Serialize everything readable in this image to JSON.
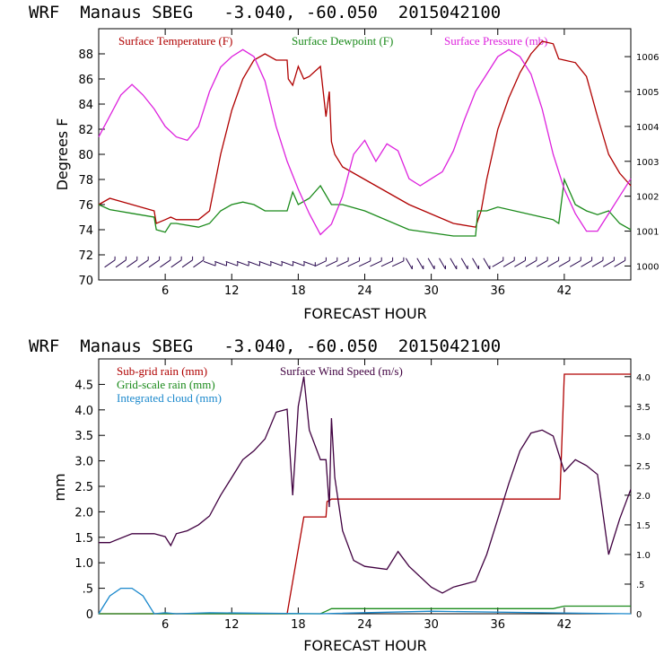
{
  "chart_data": [
    {
      "type": "line",
      "header": "WRF  Manaus SBEG   -3.040, -60.050  2015042100",
      "xlabel": "FORECAST HOUR",
      "ylabel": "Degrees F",
      "xlim": [
        0,
        48
      ],
      "ylim": [
        70,
        90
      ],
      "xticks": [
        6,
        12,
        18,
        24,
        30,
        36,
        42
      ],
      "yticks": [
        70,
        72,
        74,
        76,
        78,
        80,
        82,
        84,
        86,
        88
      ],
      "y2lim": [
        999.6,
        1006.8
      ],
      "y2ticks": [
        1000,
        1001,
        1002,
        1003,
        1004,
        1005,
        1006
      ],
      "legend_position": "top",
      "series": [
        {
          "name": "Surface Temperature (F)",
          "color": "#b00000",
          "axis": "left",
          "x": [
            0,
            1,
            3,
            5,
            5.2,
            6,
            6.5,
            7,
            9,
            10,
            11,
            12,
            13,
            14,
            15,
            16,
            17,
            17.1,
            17.5,
            18,
            18.5,
            19,
            20,
            20.5,
            20.8,
            21,
            21.3,
            22,
            24,
            28,
            32,
            34,
            34.5,
            35,
            36,
            37,
            38,
            39,
            40,
            41,
            41.5,
            42,
            43,
            44,
            45,
            46,
            47,
            48
          ],
          "y": [
            76,
            76.5,
            76,
            75.5,
            74.5,
            74.8,
            75,
            74.8,
            74.8,
            75.5,
            80,
            83.5,
            86,
            87.5,
            88,
            87.5,
            87.5,
            86,
            85.5,
            87,
            86,
            86.2,
            87,
            83,
            85,
            81,
            80,
            79,
            78,
            76,
            74.5,
            74.2,
            75.5,
            78,
            82,
            84.5,
            86.5,
            88,
            89,
            88.8,
            87.6,
            87.5,
            87.3,
            86.2,
            83,
            80,
            78.5,
            77.5
          ]
        },
        {
          "name": "Surface Dewpoint (F)",
          "color": "#1a8a1a",
          "axis": "left",
          "x": [
            0,
            1,
            3,
            5,
            5.2,
            6,
            6.5,
            7,
            9,
            10,
            11,
            12,
            13,
            14,
            15,
            16,
            17,
            17.5,
            18,
            19,
            20,
            21,
            22,
            24,
            28,
            32,
            34,
            34.2,
            35,
            36,
            40,
            41,
            41.5,
            42,
            43,
            44,
            45,
            46,
            47,
            48
          ],
          "y": [
            76,
            75.6,
            75.3,
            75,
            74,
            73.8,
            74.5,
            74.5,
            74.2,
            74.5,
            75.5,
            76,
            76.2,
            76,
            75.5,
            75.5,
            75.5,
            77,
            76,
            76.5,
            77.5,
            76,
            76,
            75.5,
            74,
            73.5,
            73.5,
            75.5,
            75.5,
            75.8,
            75,
            74.8,
            74.5,
            78,
            76,
            75.5,
            75.2,
            75.5,
            74.5,
            74
          ]
        },
        {
          "name": "Surface Pressure (mb)",
          "color": "#dd22dd",
          "axis": "right",
          "x": [
            0,
            1,
            2,
            3,
            4,
            5,
            6,
            7,
            8,
            9,
            10,
            11,
            12,
            13,
            14,
            15,
            16,
            17,
            18,
            19,
            20,
            21,
            22,
            23,
            24,
            25,
            26,
            27,
            28,
            29,
            30,
            31,
            32,
            33,
            34,
            35,
            36,
            37,
            38,
            39,
            40,
            41,
            42,
            43,
            44,
            45,
            46,
            47,
            48
          ],
          "y": [
            1003.7,
            1004.3,
            1004.9,
            1005.2,
            1004.9,
            1004.5,
            1004.0,
            1003.7,
            1003.6,
            1004.0,
            1005.0,
            1005.7,
            1006.0,
            1006.2,
            1006.0,
            1005.3,
            1004.0,
            1003.0,
            1002.2,
            1001.5,
            1000.9,
            1001.2,
            1002.0,
            1003.2,
            1003.6,
            1003.0,
            1003.5,
            1003.3,
            1002.5,
            1002.3,
            1002.5,
            1002.7,
            1003.3,
            1004.2,
            1005.0,
            1005.5,
            1006.0,
            1006.2,
            1006.0,
            1005.5,
            1004.5,
            1003.2,
            1002.2,
            1001.5,
            1001.0,
            1001.0,
            1001.5,
            1002.0,
            1002.5
          ]
        }
      ],
      "wind_barbs_y": 71.3
    },
    {
      "type": "line",
      "header": "WRF  Manaus SBEG   -3.040, -60.050  2015042100",
      "xlabel": "FORECAST HOUR",
      "ylabel": "mm",
      "xlim": [
        0,
        48
      ],
      "ylim": [
        0,
        5
      ],
      "xticks": [
        6,
        12,
        18,
        24,
        30,
        36,
        42
      ],
      "ytick_labels": [
        "0",
        ".5",
        "1.0",
        "1.5",
        "2.0",
        "2.5",
        "3.0",
        "3.5",
        "4.0",
        "4.5"
      ],
      "ytick_values": [
        0,
        0.5,
        1,
        1.5,
        2,
        2.5,
        3,
        3.5,
        4,
        4.5
      ],
      "y2lim": [
        0,
        4.3
      ],
      "y2tick_labels": [
        "0",
        ".5",
        "1.0",
        "1.5",
        "2.0",
        "2.5",
        "3.0",
        "3.5",
        "4.0"
      ],
      "y2tick_values": [
        0,
        0.5,
        1,
        1.5,
        2,
        2.5,
        3,
        3.5,
        4
      ],
      "legend_position": "top-left",
      "series": [
        {
          "name": "Sub-grid rain (mm)",
          "color": "#b00000",
          "axis": "left",
          "x": [
            0,
            17,
            18.5,
            20.5,
            20.6,
            21,
            41.5,
            41.6,
            42,
            48
          ],
          "y": [
            0,
            0,
            1.9,
            1.9,
            2.2,
            2.25,
            2.25,
            2.25,
            4.7,
            4.7
          ]
        },
        {
          "name": "Grid-scale rain (mm)",
          "color": "#1a8a1a",
          "axis": "left",
          "x": [
            0,
            20,
            20.5,
            21,
            41,
            42,
            48
          ],
          "y": [
            0,
            0,
            0.05,
            0.1,
            0.1,
            0.15,
            0.15
          ]
        },
        {
          "name": "Integrated cloud (mm)",
          "color": "#1a88cc",
          "axis": "left",
          "x": [
            0,
            1,
            2,
            3,
            4,
            5,
            6,
            7,
            10,
            20,
            30,
            40,
            48
          ],
          "y": [
            0,
            0.35,
            0.5,
            0.5,
            0.35,
            0,
            0.02,
            0,
            0.02,
            0,
            0.05,
            0.02,
            0
          ]
        },
        {
          "name": "Surface Wind Speed (m/s)",
          "color": "#400040",
          "axis": "right",
          "x": [
            0,
            1,
            3,
            5,
            6,
            6.5,
            7,
            8,
            9,
            10,
            11,
            12,
            13,
            14,
            15,
            16,
            17,
            17.5,
            18,
            18.5,
            19,
            20,
            20.5,
            20.8,
            21,
            21.3,
            22,
            23,
            24,
            26,
            27,
            28,
            30,
            31,
            32,
            33,
            34,
            35,
            36,
            37,
            38,
            39,
            40,
            41,
            41.5,
            42,
            43,
            44,
            45,
            46,
            47,
            48
          ],
          "y": [
            1.2,
            1.2,
            1.35,
            1.35,
            1.3,
            1.15,
            1.35,
            1.4,
            1.5,
            1.65,
            2.0,
            2.3,
            2.6,
            2.75,
            2.95,
            3.4,
            3.45,
            2.0,
            3.5,
            4.0,
            3.1,
            2.6,
            2.6,
            1.8,
            3.3,
            2.3,
            1.4,
            0.9,
            0.8,
            0.75,
            1.05,
            0.8,
            0.45,
            0.35,
            0.45,
            0.5,
            0.55,
            1.0,
            1.6,
            2.2,
            2.75,
            3.05,
            3.1,
            3.0,
            2.7,
            2.4,
            2.6,
            2.5,
            2.35,
            1.0,
            1.6,
            2.1
          ]
        }
      ]
    }
  ]
}
